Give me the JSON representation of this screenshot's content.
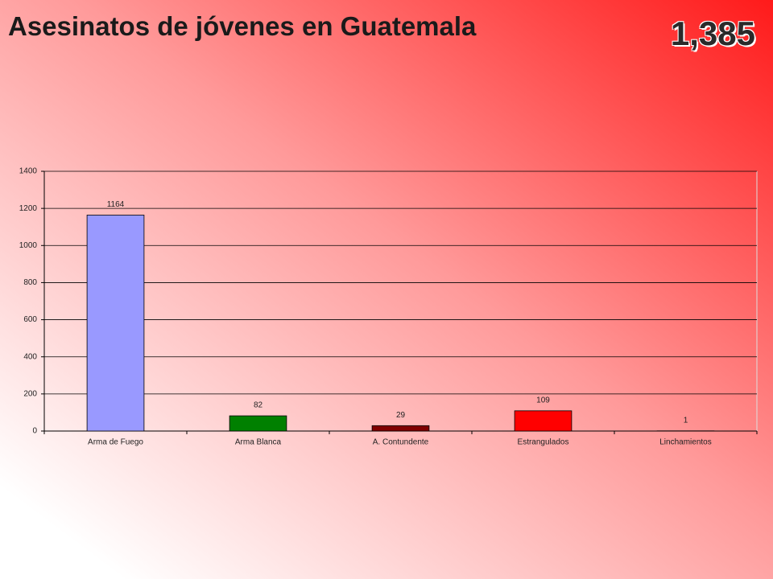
{
  "chart_data": {
    "type": "bar",
    "title": "Asesinatos de jóvenes en Guatemala",
    "annotation": "1,385",
    "categories": [
      "Arma de Fuego",
      "Arma Blanca",
      "A. Contundente",
      "Estrangulados",
      "Linchamientos"
    ],
    "values": [
      1164,
      82,
      29,
      109,
      1
    ],
    "colors": [
      "#9999ff",
      "#008000",
      "#800000",
      "#ff0000",
      "#ffff99"
    ],
    "ylim": [
      0,
      1400
    ],
    "yticks": [
      0,
      200,
      400,
      600,
      800,
      1000,
      1200,
      1400
    ],
    "grid": true
  }
}
